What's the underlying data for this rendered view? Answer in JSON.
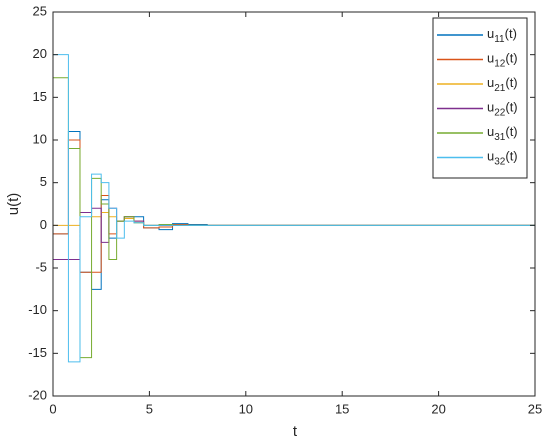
{
  "chart_data": {
    "type": "stairs",
    "xlabel": "t",
    "ylabel": "u(t)",
    "x": [
      0,
      0.8,
      1.4,
      2.0,
      2.5,
      2.9,
      3.3,
      3.7,
      4.2,
      4.7,
      5.5,
      6.2,
      7.0,
      8.0,
      10.0,
      25
    ],
    "series": [
      {
        "name": "u11(t)",
        "color": "#0072BD",
        "values": [
          -1,
          11,
          -5.5,
          -7.5,
          3,
          -1.5,
          0.5,
          1,
          1,
          -0.3,
          -0.5,
          0.2,
          0.1,
          0,
          0,
          0
        ]
      },
      {
        "name": "u12(t)",
        "color": "#D95319",
        "values": [
          -1,
          10,
          -5.5,
          -5.5,
          3.5,
          -1,
          0.5,
          1,
          0.5,
          -0.3,
          -0.2,
          0.1,
          0,
          0,
          0,
          0
        ]
      },
      {
        "name": "u21(t)",
        "color": "#EDB120",
        "values": [
          0,
          0,
          1.5,
          1,
          1.5,
          1,
          0.5,
          0.8,
          0.3,
          0,
          0,
          0,
          0,
          0,
          0,
          0
        ]
      },
      {
        "name": "u22(t)",
        "color": "#7E2F8E",
        "values": [
          -4,
          -4,
          1.5,
          2,
          -2,
          2,
          0.5,
          1,
          0.5,
          0,
          0,
          0,
          0,
          0,
          0,
          0
        ]
      },
      {
        "name": "u31(t)",
        "color": "#77AC30",
        "values": [
          17.3,
          9,
          -15.5,
          5.5,
          2.5,
          -4,
          0.5,
          1,
          0.3,
          0,
          0.1,
          0,
          0,
          0,
          0,
          0
        ]
      },
      {
        "name": "u32(t)",
        "color": "#4DBEEE",
        "values": [
          20,
          -16,
          1,
          6,
          5,
          2,
          -1.5,
          0.5,
          0.3,
          0,
          0,
          0,
          0,
          0,
          0,
          0
        ]
      }
    ],
    "xlim": [
      0,
      25
    ],
    "xticks": [
      0,
      5,
      10,
      15,
      20,
      25
    ],
    "ylim": [
      -20,
      25
    ],
    "yticks": [
      -20,
      -15,
      -10,
      -5,
      0,
      5,
      10,
      15,
      20,
      25
    ],
    "legend": "top-right",
    "grid": false
  }
}
